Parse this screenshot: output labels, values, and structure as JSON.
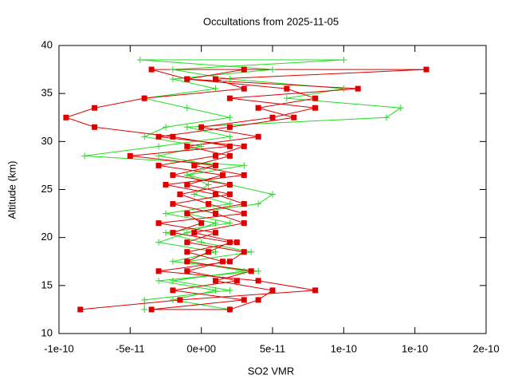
{
  "chart_data": {
    "type": "line",
    "title": "Occultations from 2025-11-05",
    "x_label": "SO2 VMR",
    "y_label": "Altitude (km)",
    "xlim": [
      -1e-10,
      2e-10
    ],
    "xticks": [
      {
        "value": -1e-10,
        "label": "-1e-10"
      },
      {
        "value": -5e-11,
        "label": "-5e-11"
      },
      {
        "value": 0,
        "label": "0e+00"
      },
      {
        "value": 5e-11,
        "label": "5e-11"
      },
      {
        "value": 1e-10,
        "label": "1e-10"
      },
      {
        "value": 1.5e-10,
        "label": "1e-10"
      },
      {
        "value": 2e-10,
        "label": "2e-10"
      }
    ],
    "ylim": [
      10,
      40
    ],
    "yticks": [
      10,
      15,
      20,
      25,
      30,
      35,
      40
    ],
    "grid": false,
    "series": [
      {
        "color": "#22dd22",
        "marker": "plus",
        "x": [
          -4e-11,
          -4e-11,
          2e-11,
          -2e-11,
          3e-11,
          -1e-11,
          3.5e-11,
          0,
          -2.5e-11,
          2e-11,
          -1e-11,
          4e-11,
          5e-11,
          2e-11,
          -1e-11,
          3e-11,
          -8.2e-11,
          -3e-11,
          2e-11,
          -1e-11,
          1.3e-10,
          1.4e-10,
          6e-11,
          1e-10,
          2e-11,
          -2e-11,
          1e-10,
          -4.3e-11,
          5e-11,
          -2e-11,
          1e-11,
          -4e-11,
          -1e-11,
          2e-11,
          -2.5e-11,
          -4e-11,
          0,
          -3e-11,
          1e-11,
          -1e-11,
          5e-12,
          -5e-12,
          2e-11,
          -2.5e-11,
          1e-11,
          -1e-11,
          -3e-11,
          1e-11,
          -2e-11,
          4e-11,
          -3e-11,
          1e-11,
          -2e-11,
          2e-11
        ],
        "values": [
          12.5,
          13.5,
          14.5,
          15.5,
          16.5,
          17.5,
          18.5,
          19.5,
          20.5,
          21.5,
          22.5,
          23.5,
          24.5,
          25.5,
          26.5,
          27.5,
          28.5,
          29.5,
          30.5,
          31.5,
          32.5,
          33.5,
          34.5,
          35.5,
          36.5,
          37.5,
          38.5,
          38.5,
          37.5,
          36.5,
          35.5,
          34.5,
          33.5,
          32.5,
          31.5,
          30.5,
          29.5,
          28.5,
          27.5,
          26.5,
          25.5,
          24.5,
          23.5,
          22.5,
          21.5,
          20.5,
          19.5,
          18.5,
          17.5,
          16.5,
          15.5,
          14.5,
          13.5,
          12.5
        ]
      },
      {
        "color": "#dd0000",
        "marker": "square",
        "x": [
          -8.5e-11,
          -1.5e-11,
          8e-11,
          4e-11,
          -3e-11,
          2e-11,
          3e-11,
          -1e-11,
          1e-11,
          -3e-11,
          3e-11,
          5e-12,
          -1.5e-11,
          2e-11,
          -2e-11,
          1e-11,
          -5e-11,
          2e-11,
          -2e-11,
          -7.5e-11,
          -9.5e-11,
          -7.5e-11,
          -4e-11,
          3e-11,
          1e-11,
          1.58e-10,
          -3.5e-11,
          -1e-11,
          6e-11,
          8e-11,
          4e-11,
          6.5e-11,
          2e-11,
          -3e-11,
          3e-11,
          1e-11,
          -3e-11,
          1.5e-11,
          -1e-11,
          2e-11,
          -2e-11,
          1e-11,
          3e-11,
          -5e-12,
          2.5e-11,
          -1e-11,
          1.5e-11,
          -1e-11,
          2.5e-11,
          -2e-11,
          3e-11,
          -3.5e-11,
          2e-11,
          4e-11,
          5e-11,
          1e-11,
          3.5e-11,
          -1e-11,
          5e-12,
          2e-11,
          -2e-11,
          0,
          -1e-11,
          3e-11,
          1e-11,
          -2.5e-11,
          3e-11,
          -5e-12,
          2e-11,
          -1e-11,
          4e-11,
          0,
          5e-11,
          8e-11,
          2e-11,
          1.1e-10,
          -1e-11,
          3e-11
        ],
        "values": [
          12.5,
          13.5,
          14.5,
          15.5,
          16.5,
          17.5,
          18.5,
          19.5,
          20.5,
          21.5,
          22.5,
          23.5,
          24.5,
          25.5,
          26.5,
          27.5,
          28.5,
          29.5,
          30.5,
          31.5,
          32.5,
          33.5,
          34.5,
          35.5,
          36.5,
          37.5,
          37.5,
          36.5,
          35.5,
          34.5,
          33.5,
          32.5,
          31.5,
          30.5,
          29.5,
          28.5,
          27.5,
          26.5,
          25.5,
          24.5,
          23.5,
          22.5,
          21.5,
          20.5,
          19.5,
          18.5,
          17.5,
          16.5,
          15.5,
          14.5,
          13.5,
          12.5,
          12.5,
          13.5,
          14.5,
          15.5,
          16.5,
          17.5,
          18.5,
          19.5,
          20.5,
          21.5,
          22.5,
          23.5,
          24.5,
          25.5,
          26.5,
          27.5,
          28.5,
          29.5,
          30.5,
          31.5,
          32.5,
          33.5,
          34.5,
          35.5,
          36.5,
          37.5
        ]
      }
    ]
  }
}
